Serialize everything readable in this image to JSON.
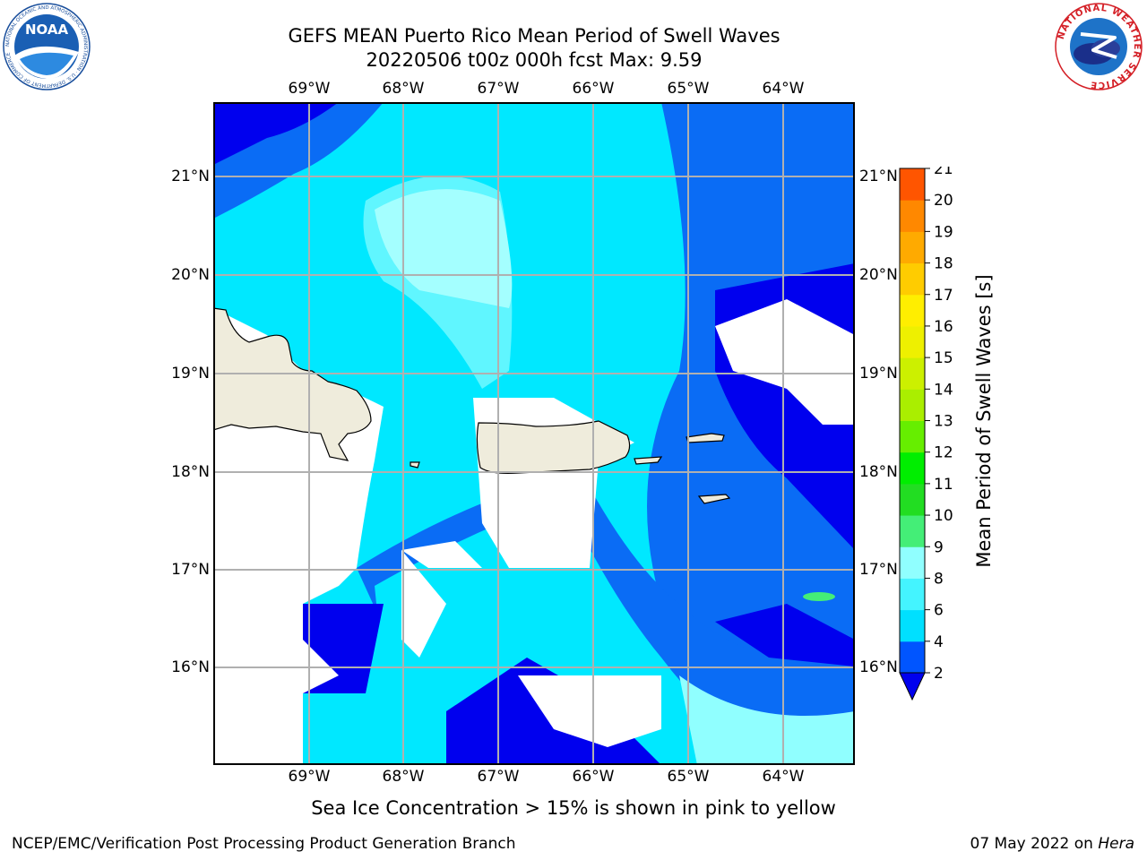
{
  "header": {
    "title_line1": "GEFS MEAN Puerto Rico Mean Period of Swell Waves",
    "title_line2": "20220506 t00z 000h fcst   Max: 9.59"
  },
  "logos": {
    "left": "NOAA",
    "left_ring_text": "NATIONAL OCEANIC AND ATMOSPHERIC ADMINISTRATION · U.S. DEPARTMENT OF COMMERCE",
    "right_ring_text": "NATIONAL WEATHER SERVICE"
  },
  "map": {
    "lon_labels": [
      "69°W",
      "68°W",
      "67°W",
      "66°W",
      "65°W",
      "64°W"
    ],
    "lat_labels": [
      "21°N",
      "20°N",
      "19°N",
      "18°N",
      "17°N",
      "16°N"
    ],
    "lon_range": [
      -70.0,
      -63.25
    ],
    "lat_range": [
      15.0,
      21.75
    ],
    "land_color": "#efecdc",
    "grid_color": "#b0b0b0"
  },
  "colorbar": {
    "label": "Mean Period of Swell Waves [s]",
    "ticks": [
      "2",
      "4",
      "6",
      "8",
      "9",
      "10",
      "11",
      "12",
      "13",
      "14",
      "15",
      "16",
      "17",
      "18",
      "19",
      "20",
      "21"
    ],
    "colors": [
      "#0055ff",
      "#00e0ff",
      "#44f4ff",
      "#90ffff",
      "#44ee77",
      "#22dd22",
      "#00ee00",
      "#66ee00",
      "#aaee00",
      "#ccf000",
      "#eef000",
      "#ffee00",
      "#ffcc00",
      "#ffaa00",
      "#ff8800",
      "#ff5500",
      "#ff2200",
      "#ff0000"
    ],
    "extend_color": "#0000ee"
  },
  "note": "Sea Ice Concentration > 15% is shown in pink to yellow",
  "footer": {
    "left": "NCEP/EMC/Verification Post Processing Product Generation Branch",
    "date": "07 May 2022 on ",
    "machine": "Hera"
  }
}
